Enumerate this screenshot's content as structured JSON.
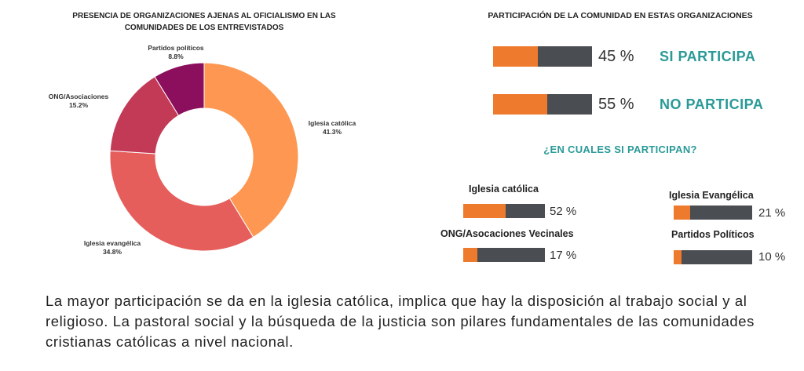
{
  "donut": {
    "title_line1": "PRESENCIA DE ORGANIZACIONES AJENAS AL OFICIALISMO EN LAS",
    "title_line2": "COMUNIDADES DE LOS ENTREVISTADOS"
  },
  "participation": {
    "title": "PARTICIPACIÓN DE LA COMUNIDAD EN ESTAS ORGANIZACIONES",
    "rows": [
      {
        "pct_text": "45 %",
        "status": "SI PARTICIPA",
        "value": 45
      },
      {
        "pct_text": "55 %",
        "status": "NO PARTICIPA",
        "value": 55
      }
    ]
  },
  "which": {
    "title": "¿EN CUALES SI PARTICIPAN?",
    "items": [
      {
        "label": "Iglesia católica",
        "pct_text": "52 %",
        "value": 52
      },
      {
        "label": "Iglesia Evangélica",
        "pct_text": "21 %",
        "value": 21
      },
      {
        "label": "ONG/Asocaciones Vecinales",
        "pct_text": "17 %",
        "value": 17
      },
      {
        "label": "Partidos Políticos",
        "pct_text": "10 %",
        "value": 10
      }
    ]
  },
  "caption": "La mayor participación se da en la iglesia católica, implica que hay la disposición al trabajo social y al religioso. La pastoral social y la búsqueda de la justicia son pilares fundamentales de las comunidades cristianas católicas a nivel nacional.",
  "chart_data": [
    {
      "type": "pie",
      "donut": true,
      "title": "PRESENCIA DE ORGANIZACIONES AJENAS AL OFICIALISMO EN LAS COMUNIDADES DE LOS ENTREVISTADOS",
      "categories": [
        "Iglesia católica",
        "Iglesia evangélica",
        "ONG/Asociaciones",
        "Partidos políticos"
      ],
      "values": [
        41.3,
        34.8,
        15.2,
        8.8
      ],
      "value_labels": [
        "41.3%",
        "34.8%",
        "15.2%",
        "8.8%"
      ],
      "colors": [
        "#fd9751",
        "#e55e5c",
        "#c33a57",
        "#8b0f5c"
      ]
    },
    {
      "type": "bar",
      "title": "PARTICIPACIÓN DE LA COMUNIDAD EN ESTAS ORGANIZACIONES",
      "categories": [
        "SI PARTICIPA",
        "NO PARTICIPA"
      ],
      "values": [
        45,
        55
      ],
      "unit": "%",
      "colors": {
        "fill": "#ee7a2e",
        "rest": "#4a4d52"
      }
    },
    {
      "type": "bar",
      "title": "¿EN CUALES SI PARTICIPAN?",
      "categories": [
        "Iglesia católica",
        "Iglesia Evangélica",
        "ONG/Asocaciones Vecinales",
        "Partidos Políticos"
      ],
      "values": [
        52,
        21,
        17,
        10
      ],
      "unit": "%",
      "colors": {
        "fill": "#ee7a2e",
        "rest": "#4a4d52"
      }
    }
  ]
}
